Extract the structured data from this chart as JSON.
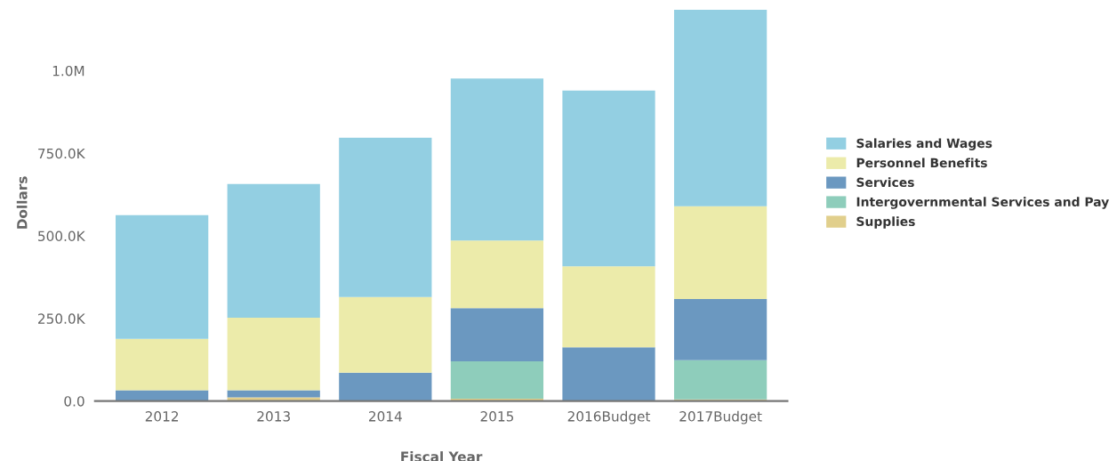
{
  "chart_data": {
    "type": "bar",
    "stacked": true,
    "xlabel": "Fiscal Year",
    "ylabel": "Dollars",
    "categories": [
      "2012",
      "2013",
      "2014",
      "2015",
      "2016Budget",
      "2017Budget"
    ],
    "series": [
      {
        "name": "Supplies",
        "color": "#e1cf8c",
        "values": [
          0,
          11000,
          0,
          7000,
          0,
          5000
        ]
      },
      {
        "name": "Intergovernmental Services and Pay",
        "color": "#8ecdbb",
        "values": [
          0,
          0,
          0,
          113000,
          0,
          119000
        ]
      },
      {
        "name": "Services",
        "color": "#6b98c0",
        "values": [
          33000,
          22000,
          86000,
          161000,
          163000,
          185000
        ]
      },
      {
        "name": "Personnel Benefits",
        "color": "#ecebaa",
        "values": [
          155000,
          219000,
          229000,
          205000,
          245000,
          281000
        ]
      },
      {
        "name": "Salaries and Wages",
        "color": "#93cfe2",
        "values": [
          375000,
          405000,
          482000,
          490000,
          532000,
          594000
        ]
      }
    ],
    "ylim": [
      0,
      1200000
    ],
    "yticks": [
      {
        "value": 0,
        "label": "0.0"
      },
      {
        "value": 250000,
        "label": "250.0K"
      },
      {
        "value": 500000,
        "label": "500.0K"
      },
      {
        "value": 750000,
        "label": "750.0K"
      },
      {
        "value": 1000000,
        "label": "1.0M"
      }
    ],
    "legend": "right"
  }
}
